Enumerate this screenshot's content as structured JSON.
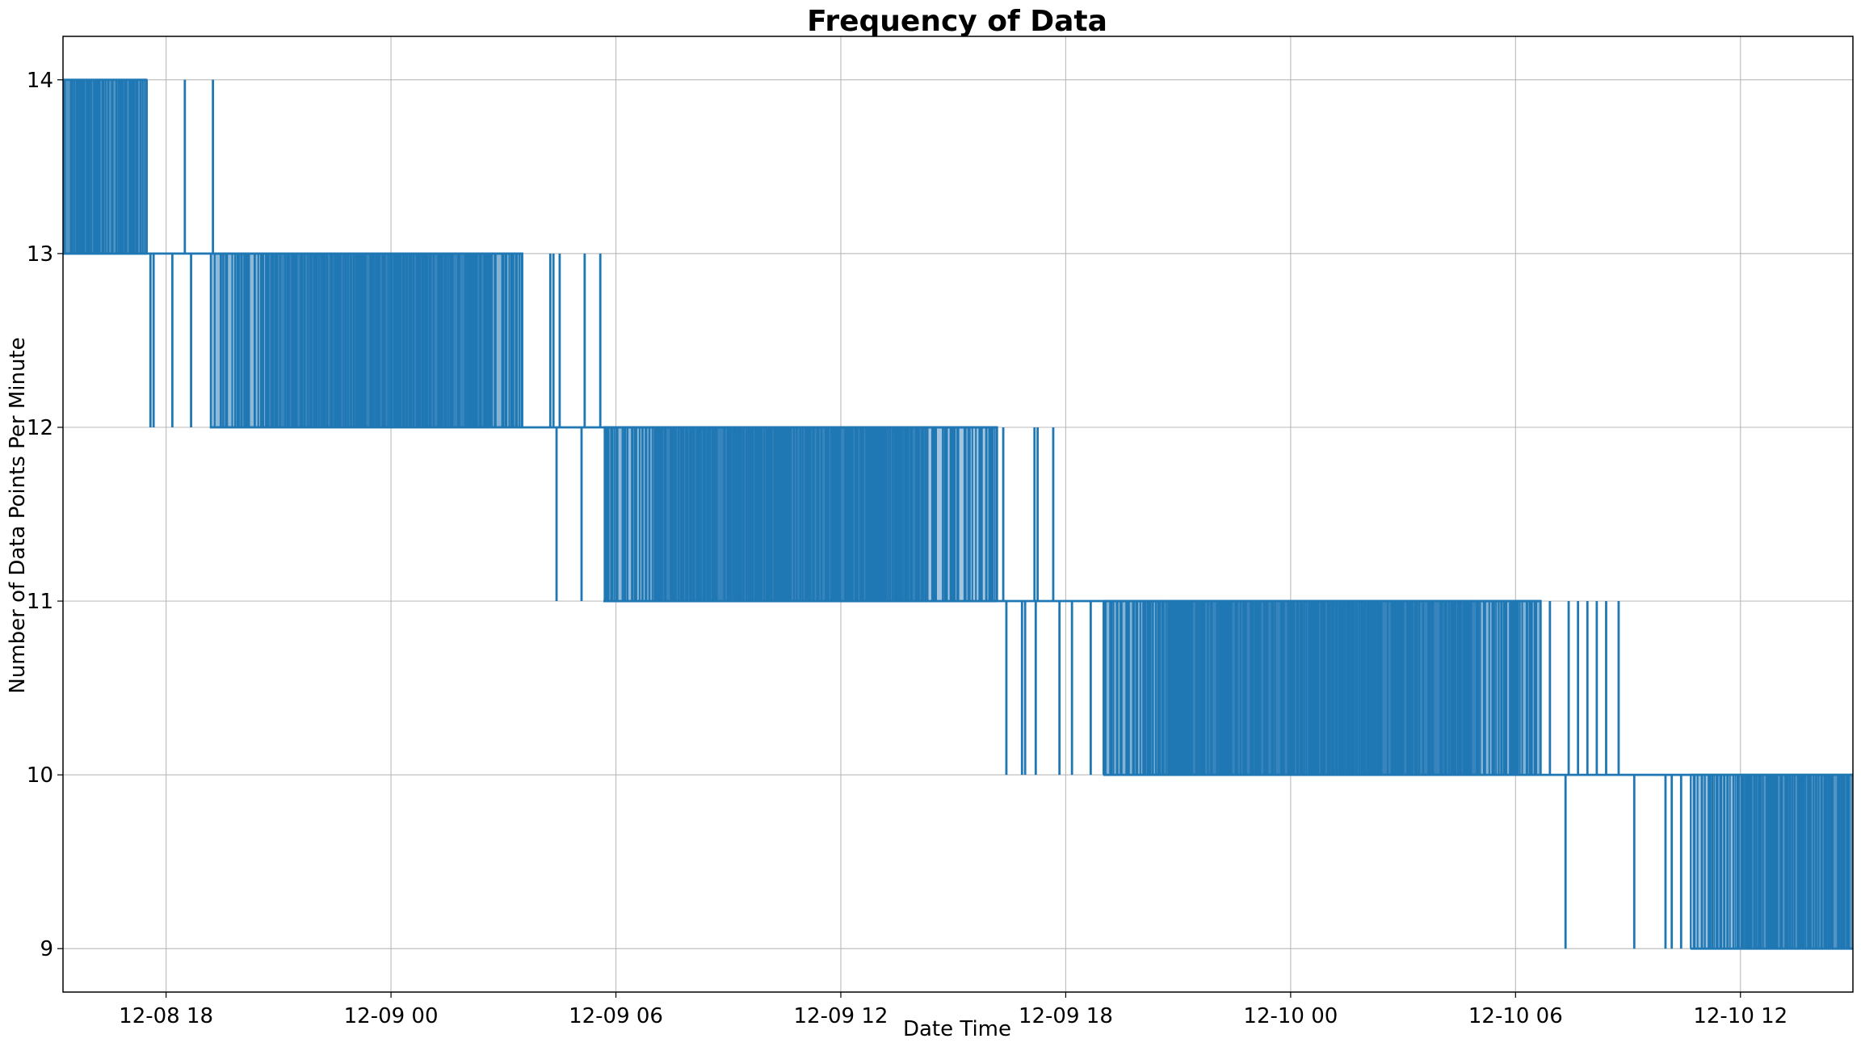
{
  "chart_data": {
    "type": "line",
    "title": "Frequency of Data",
    "xlabel": "Date Time",
    "ylabel": "Number of Data Points Per Minute",
    "x_axis_type": "datetime",
    "xlim": [
      "2018-12-08 15:15",
      "2018-12-10 15:00"
    ],
    "ylim": [
      8.75,
      14.25
    ],
    "grid": true,
    "legend": "none",
    "color": "#1f77b4",
    "x_ticks": [
      {
        "value": "2018-12-08 18:00",
        "label": "12-08 18"
      },
      {
        "value": "2018-12-09 00:00",
        "label": "12-09 00"
      },
      {
        "value": "2018-12-09 06:00",
        "label": "12-09 06"
      },
      {
        "value": "2018-12-09 12:00",
        "label": "12-09 12"
      },
      {
        "value": "2018-12-09 18:00",
        "label": "12-09 18"
      },
      {
        "value": "2018-12-10 00:00",
        "label": "12-10 00"
      },
      {
        "value": "2018-12-10 06:00",
        "label": "12-10 06"
      },
      {
        "value": "2018-12-10 12:00",
        "label": "12-10 12"
      }
    ],
    "y_ticks": [
      {
        "value": 9,
        "label": "9"
      },
      {
        "value": 10,
        "label": "10"
      },
      {
        "value": 11,
        "label": "11"
      },
      {
        "value": 12,
        "label": "12"
      },
      {
        "value": 13,
        "label": "13"
      },
      {
        "value": 14,
        "label": "14"
      }
    ],
    "oscillation_bands": [
      {
        "start": "2018-12-08 15:15",
        "end": "2018-12-08 17:30",
        "low": 13,
        "high": 14,
        "density": 0.85
      },
      {
        "start": "2018-12-08 19:10",
        "end": "2018-12-08 20:40",
        "low": 12,
        "high": 13,
        "density": 0.55
      },
      {
        "start": "2018-12-08 20:40",
        "end": "2018-12-09 02:40",
        "low": 12,
        "high": 13,
        "density": 0.97
      },
      {
        "start": "2018-12-09 02:40",
        "end": "2018-12-09 03:30",
        "low": 12,
        "high": 13,
        "density": 0.6
      },
      {
        "start": "2018-12-09 05:40",
        "end": "2018-12-09 07:00",
        "low": 11,
        "high": 12,
        "density": 0.55
      },
      {
        "start": "2018-12-09 07:00",
        "end": "2018-12-09 14:20",
        "low": 11,
        "high": 12,
        "density": 0.97
      },
      {
        "start": "2018-12-09 14:20",
        "end": "2018-12-09 16:10",
        "low": 11,
        "high": 12,
        "density": 0.45
      },
      {
        "start": "2018-12-09 19:00",
        "end": "2018-12-09 20:40",
        "low": 10,
        "high": 11,
        "density": 0.6
      },
      {
        "start": "2018-12-09 20:40",
        "end": "2018-12-10 05:00",
        "low": 10,
        "high": 11,
        "density": 0.97
      },
      {
        "start": "2018-12-10 05:00",
        "end": "2018-12-10 06:40",
        "low": 10,
        "high": 11,
        "density": 0.6
      },
      {
        "start": "2018-12-10 10:40",
        "end": "2018-12-10 12:00",
        "low": 9,
        "high": 10,
        "density": 0.5
      },
      {
        "start": "2018-12-10 12:00",
        "end": "2018-12-10 15:00",
        "low": 9,
        "high": 10,
        "density": 0.85
      }
    ],
    "spikes": [
      {
        "x": "2018-12-08 17:35",
        "from": 13,
        "to": 12
      },
      {
        "x": "2018-12-08 17:40",
        "from": 13,
        "to": 12
      },
      {
        "x": "2018-12-08 18:10",
        "from": 13,
        "to": 12
      },
      {
        "x": "2018-12-08 18:30",
        "from": 13,
        "to": 14
      },
      {
        "x": "2018-12-08 18:40",
        "from": 13,
        "to": 12
      },
      {
        "x": "2018-12-08 19:15",
        "from": 13,
        "to": 14
      },
      {
        "x": "2018-12-09 04:15",
        "from": 12,
        "to": 13
      },
      {
        "x": "2018-12-09 04:20",
        "from": 12,
        "to": 13
      },
      {
        "x": "2018-12-09 04:25",
        "from": 12,
        "to": 11
      },
      {
        "x": "2018-12-09 04:30",
        "from": 12,
        "to": 13
      },
      {
        "x": "2018-12-09 05:05",
        "from": 12,
        "to": 11
      },
      {
        "x": "2018-12-09 05:10",
        "from": 12,
        "to": 13
      },
      {
        "x": "2018-12-09 05:35",
        "from": 12,
        "to": 13
      },
      {
        "x": "2018-12-09 16:20",
        "from": 11,
        "to": 12
      },
      {
        "x": "2018-12-09 16:25",
        "from": 11,
        "to": 10
      },
      {
        "x": "2018-12-09 16:50",
        "from": 11,
        "to": 10
      },
      {
        "x": "2018-12-09 16:55",
        "from": 11,
        "to": 10
      },
      {
        "x": "2018-12-09 17:10",
        "from": 11,
        "to": 12
      },
      {
        "x": "2018-12-09 17:12",
        "from": 11,
        "to": 10
      },
      {
        "x": "2018-12-09 17:15",
        "from": 11,
        "to": 12
      },
      {
        "x": "2018-12-09 17:40",
        "from": 11,
        "to": 12
      },
      {
        "x": "2018-12-09 17:50",
        "from": 11,
        "to": 10
      },
      {
        "x": "2018-12-09 18:10",
        "from": 11,
        "to": 10
      },
      {
        "x": "2018-12-09 18:40",
        "from": 11,
        "to": 10
      },
      {
        "x": "2018-12-10 06:55",
        "from": 10,
        "to": 11
      },
      {
        "x": "2018-12-10 07:20",
        "from": 10,
        "to": 9
      },
      {
        "x": "2018-12-10 07:25",
        "from": 10,
        "to": 11
      },
      {
        "x": "2018-12-10 07:40",
        "from": 10,
        "to": 11
      },
      {
        "x": "2018-12-10 07:55",
        "from": 10,
        "to": 11
      },
      {
        "x": "2018-12-10 08:10",
        "from": 10,
        "to": 11
      },
      {
        "x": "2018-12-10 08:25",
        "from": 10,
        "to": 11
      },
      {
        "x": "2018-12-10 08:45",
        "from": 10,
        "to": 11
      },
      {
        "x": "2018-12-10 09:10",
        "from": 10,
        "to": 9
      },
      {
        "x": "2018-12-10 10:00",
        "from": 10,
        "to": 9
      },
      {
        "x": "2018-12-10 10:10",
        "from": 10,
        "to": 9
      },
      {
        "x": "2018-12-10 10:25",
        "from": 10,
        "to": 9
      }
    ]
  }
}
